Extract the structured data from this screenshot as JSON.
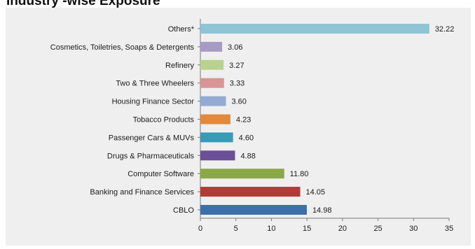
{
  "chart_data": {
    "type": "bar",
    "orientation": "horizontal",
    "title": "Industry -wise Exposure",
    "categories": [
      "Others*",
      "Cosmetics, Toiletries, Soaps & Detergents",
      "Refinery",
      "Two & Three Wheelers",
      "Housing Finance Sector",
      "Tobacco Products",
      "Passenger Cars & MUVs",
      "Drugs & Pharmaceuticals",
      "Computer Software",
      "Banking and Finance Services",
      "CBLO"
    ],
    "values": [
      32.22,
      3.06,
      3.27,
      3.33,
      3.6,
      4.23,
      4.6,
      4.88,
      11.8,
      14.05,
      14.98
    ],
    "value_labels": [
      "32.22",
      "3.06",
      "3.27",
      "3.33",
      "3.60",
      "4.23",
      "4.60",
      "4.88",
      "11.80",
      "14.05",
      "14.98"
    ],
    "colors": [
      "#8fc4d4",
      "#a69bc2",
      "#b9d18f",
      "#d99594",
      "#95aad3",
      "#e3893c",
      "#3a9bb5",
      "#6b4f97",
      "#8aa846",
      "#b23a37",
      "#3c6fab"
    ],
    "xlim": [
      0,
      35
    ],
    "xticks": [
      0,
      5,
      10,
      15,
      20,
      25,
      30,
      35
    ],
    "xlabel": "",
    "ylabel": "",
    "grid": false,
    "legend": "none"
  }
}
